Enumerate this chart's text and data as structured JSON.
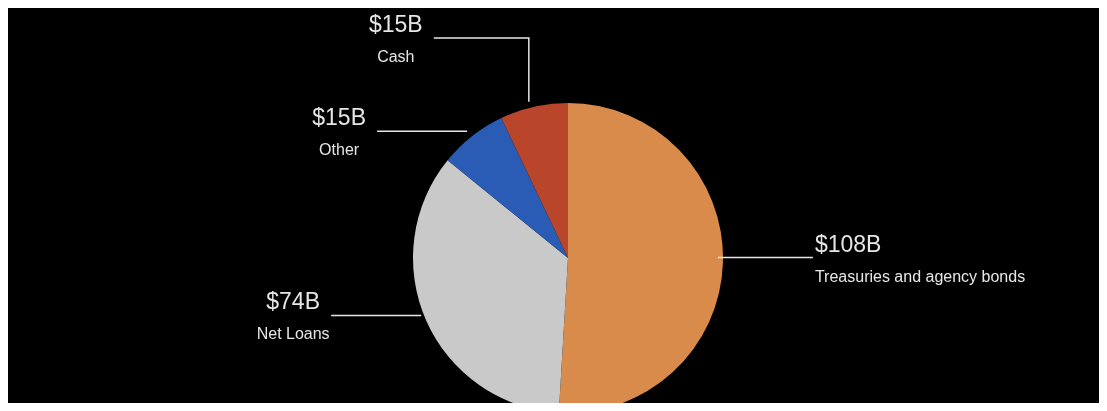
{
  "chart_data": {
    "type": "pie",
    "categories": [
      "Treasuries and agency bonds",
      "Net Loans",
      "Other",
      "Cash"
    ],
    "values": [
      108,
      74,
      15,
      15
    ],
    "colors": [
      "#d98b4b",
      "#c9c9c9",
      "#2b5cb5",
      "#b9462b"
    ],
    "value_labels": [
      "$108B",
      "$74B",
      "$15B",
      "$15B"
    ]
  }
}
